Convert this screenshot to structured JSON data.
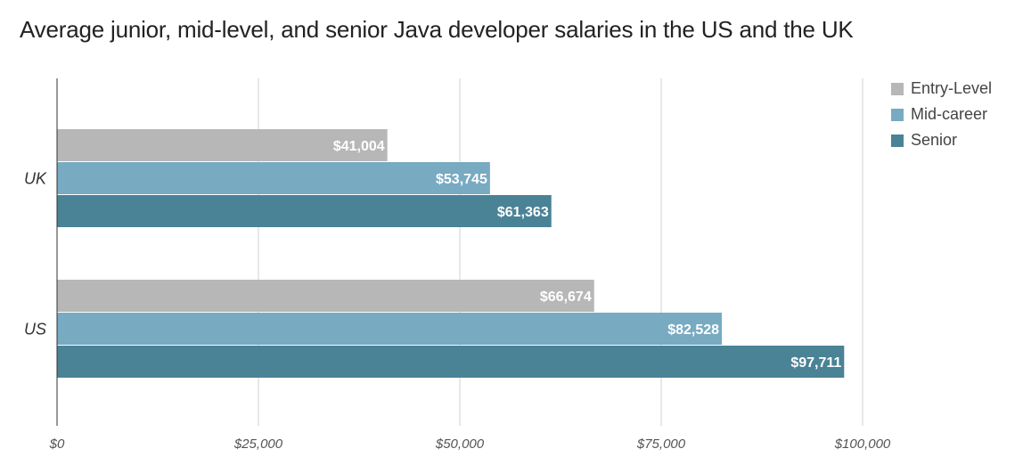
{
  "chart_data": {
    "type": "bar",
    "orientation": "horizontal",
    "title": "Average junior, mid-level, and senior Java developer salaries in the US and the UK",
    "categories": [
      "UK",
      "US"
    ],
    "series": [
      {
        "name": "Entry-Level",
        "color": "#b7b7b7",
        "values": [
          41004,
          66674
        ],
        "labels": [
          "$41,004",
          "$66,674"
        ]
      },
      {
        "name": "Mid-career",
        "color": "#78aac2",
        "values": [
          53745,
          82528
        ],
        "labels": [
          "$53,745",
          "$82,528"
        ]
      },
      {
        "name": "Senior",
        "color": "#4a8296",
        "values": [
          61363,
          97711
        ],
        "labels": [
          "$61,363",
          "$97,711"
        ]
      }
    ],
    "xlim": [
      0,
      100000
    ],
    "x_ticks": [
      0,
      25000,
      50000,
      75000,
      100000
    ],
    "x_tick_labels": [
      "$0",
      "$25,000",
      "$50,000",
      "$75,000",
      "$100,000"
    ],
    "xlabel": "",
    "ylabel": "",
    "grid": true,
    "legend_position": "right"
  }
}
